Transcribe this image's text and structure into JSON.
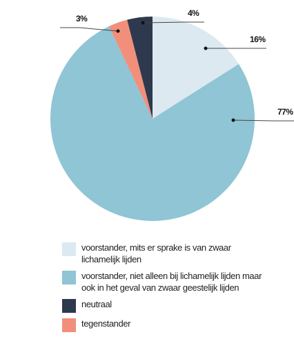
{
  "chart_data": {
    "type": "pie",
    "categories": [
      "voorstander, mits er sprake is van zwaar lichamelijk lijden",
      "voorstander, niet alleen bij lichamelijk lijden maar ook in het geval van zwaar geestelijk lijden",
      "neutraal",
      "tegenstander"
    ],
    "values": [
      16,
      77,
      4,
      3
    ],
    "value_labels": [
      "16%",
      "77%",
      "4%",
      "3%"
    ],
    "colors": [
      "#dce9f0",
      "#8fc5d4",
      "#2e394d",
      "#f28f7a"
    ],
    "order": [
      0,
      1,
      3,
      2
    ]
  }
}
